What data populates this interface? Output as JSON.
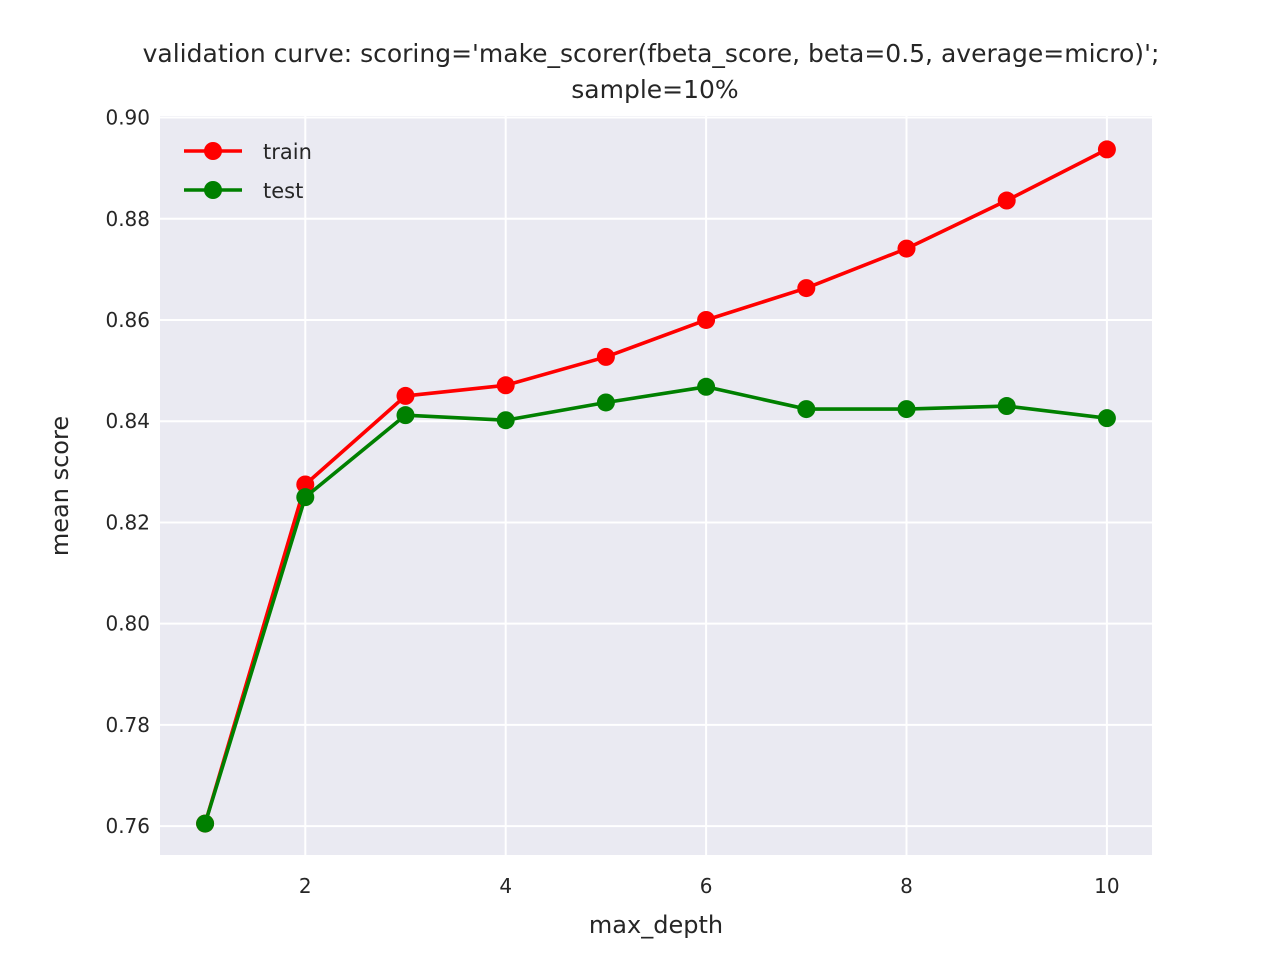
{
  "chart_data": {
    "type": "line",
    "title": "validation curve: scoring='make_scorer(fbeta_score, beta=0.5, average=micro)';",
    "subtitle": "sample=10%",
    "xlabel": "max_depth",
    "ylabel": "mean score",
    "x": [
      1,
      2,
      3,
      4,
      5,
      6,
      7,
      8,
      9,
      10
    ],
    "xlim": [
      0.55,
      10.45
    ],
    "ylim": [
      0.7543,
      0.9003
    ],
    "x_ticks": [
      2,
      4,
      6,
      8,
      10
    ],
    "x_tick_labels": [
      "2",
      "4",
      "6",
      "8",
      "10"
    ],
    "y_ticks": [
      0.76,
      0.78,
      0.8,
      0.82,
      0.84,
      0.86,
      0.88,
      0.9
    ],
    "y_tick_labels": [
      "0.76",
      "0.78",
      "0.80",
      "0.82",
      "0.84",
      "0.86",
      "0.88",
      "0.90"
    ],
    "grid": true,
    "legend_position": "top-left",
    "background_color": "#EAEAF2",
    "grid_color": "#FFFFFF",
    "series": [
      {
        "name": "train",
        "color": "#FF0000",
        "values": [
          0.7605,
          0.8275,
          0.845,
          0.8471,
          0.8527,
          0.86,
          0.8663,
          0.8741,
          0.8836,
          0.8937
        ]
      },
      {
        "name": "test",
        "color": "#008000",
        "values": [
          0.7605,
          0.825,
          0.8412,
          0.8402,
          0.8437,
          0.8468,
          0.8424,
          0.8424,
          0.843,
          0.8406
        ]
      }
    ]
  }
}
